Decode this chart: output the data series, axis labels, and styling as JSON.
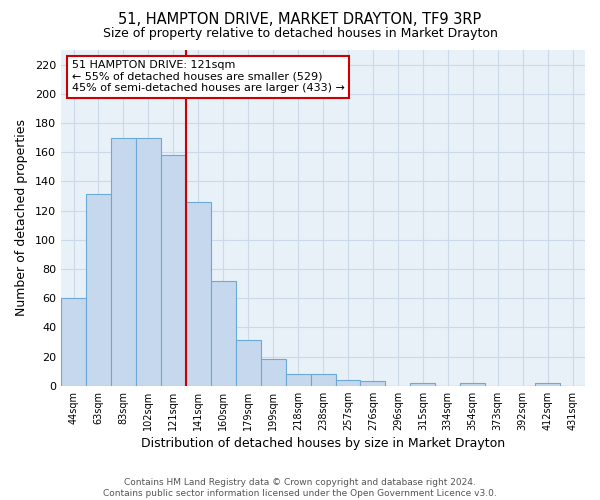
{
  "title": "51, HAMPTON DRIVE, MARKET DRAYTON, TF9 3RP",
  "subtitle": "Size of property relative to detached houses in Market Drayton",
  "xlabel": "Distribution of detached houses by size in Market Drayton",
  "ylabel": "Number of detached properties",
  "bar_labels": [
    "44sqm",
    "63sqm",
    "83sqm",
    "102sqm",
    "121sqm",
    "141sqm",
    "160sqm",
    "179sqm",
    "199sqm",
    "218sqm",
    "238sqm",
    "257sqm",
    "276sqm",
    "296sqm",
    "315sqm",
    "334sqm",
    "354sqm",
    "373sqm",
    "392sqm",
    "412sqm",
    "431sqm"
  ],
  "bar_values": [
    60,
    131,
    170,
    170,
    158,
    126,
    72,
    31,
    18,
    8,
    8,
    4,
    3,
    0,
    2,
    0,
    2,
    0,
    0,
    2,
    0
  ],
  "bar_color": "#c5d8ed",
  "bar_edge_color": "#6aaad4",
  "ylim": [
    0,
    230
  ],
  "yticks": [
    0,
    20,
    40,
    60,
    80,
    100,
    120,
    140,
    160,
    180,
    200,
    220
  ],
  "vline_index": 4,
  "vline_color": "#cc0000",
  "annotation_title": "51 HAMPTON DRIVE: 121sqm",
  "annotation_line1": "← 55% of detached houses are smaller (529)",
  "annotation_line2": "45% of semi-detached houses are larger (433) →",
  "annotation_box_color": "#ffffff",
  "annotation_box_edge": "#cc0000",
  "footer1": "Contains HM Land Registry data © Crown copyright and database right 2024.",
  "footer2": "Contains public sector information licensed under the Open Government Licence v3.0.",
  "background_color": "#ffffff",
  "grid_color": "#ccd9e8"
}
